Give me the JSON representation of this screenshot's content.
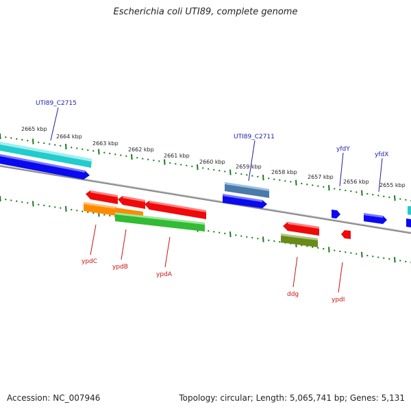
{
  "title": "Escherichia coli UTI89, complete genome",
  "footer": {
    "accession": "Accession: NC_007946",
    "summary": "Topology: circular; Length: 5,065,741 bp; Genes: 5,131"
  },
  "ticks": [
    "2665 kbp",
    "2664 kbp",
    "2663 kbp",
    "2662 kbp",
    "2661 kbp",
    "2660 kbp",
    "2659 kbp",
    "2658 kbp",
    "2657 kbp",
    "2656 kbp",
    "2655 kbp"
  ],
  "forward_genes": [
    "UTI89_C2715",
    "UTI89_C2711",
    "yfdY",
    "yfdX"
  ],
  "reverse_genes": [
    "ypdC",
    "ypdB",
    "ypdA",
    "ddg",
    "ypdI"
  ],
  "colors": {
    "backbone": "#8a8a8a",
    "tick": "#1a7a1a",
    "forward_label": "#1a1aa8",
    "reverse_label": "#cc1111",
    "cds_blue": "#0a0aee",
    "cds_red": "#ee0a0a",
    "cyan": "#22cccc",
    "steelblue": "#4a7aaa",
    "orange": "#ff8a00",
    "green": "#33bb33",
    "olive": "#6a8a1a"
  }
}
